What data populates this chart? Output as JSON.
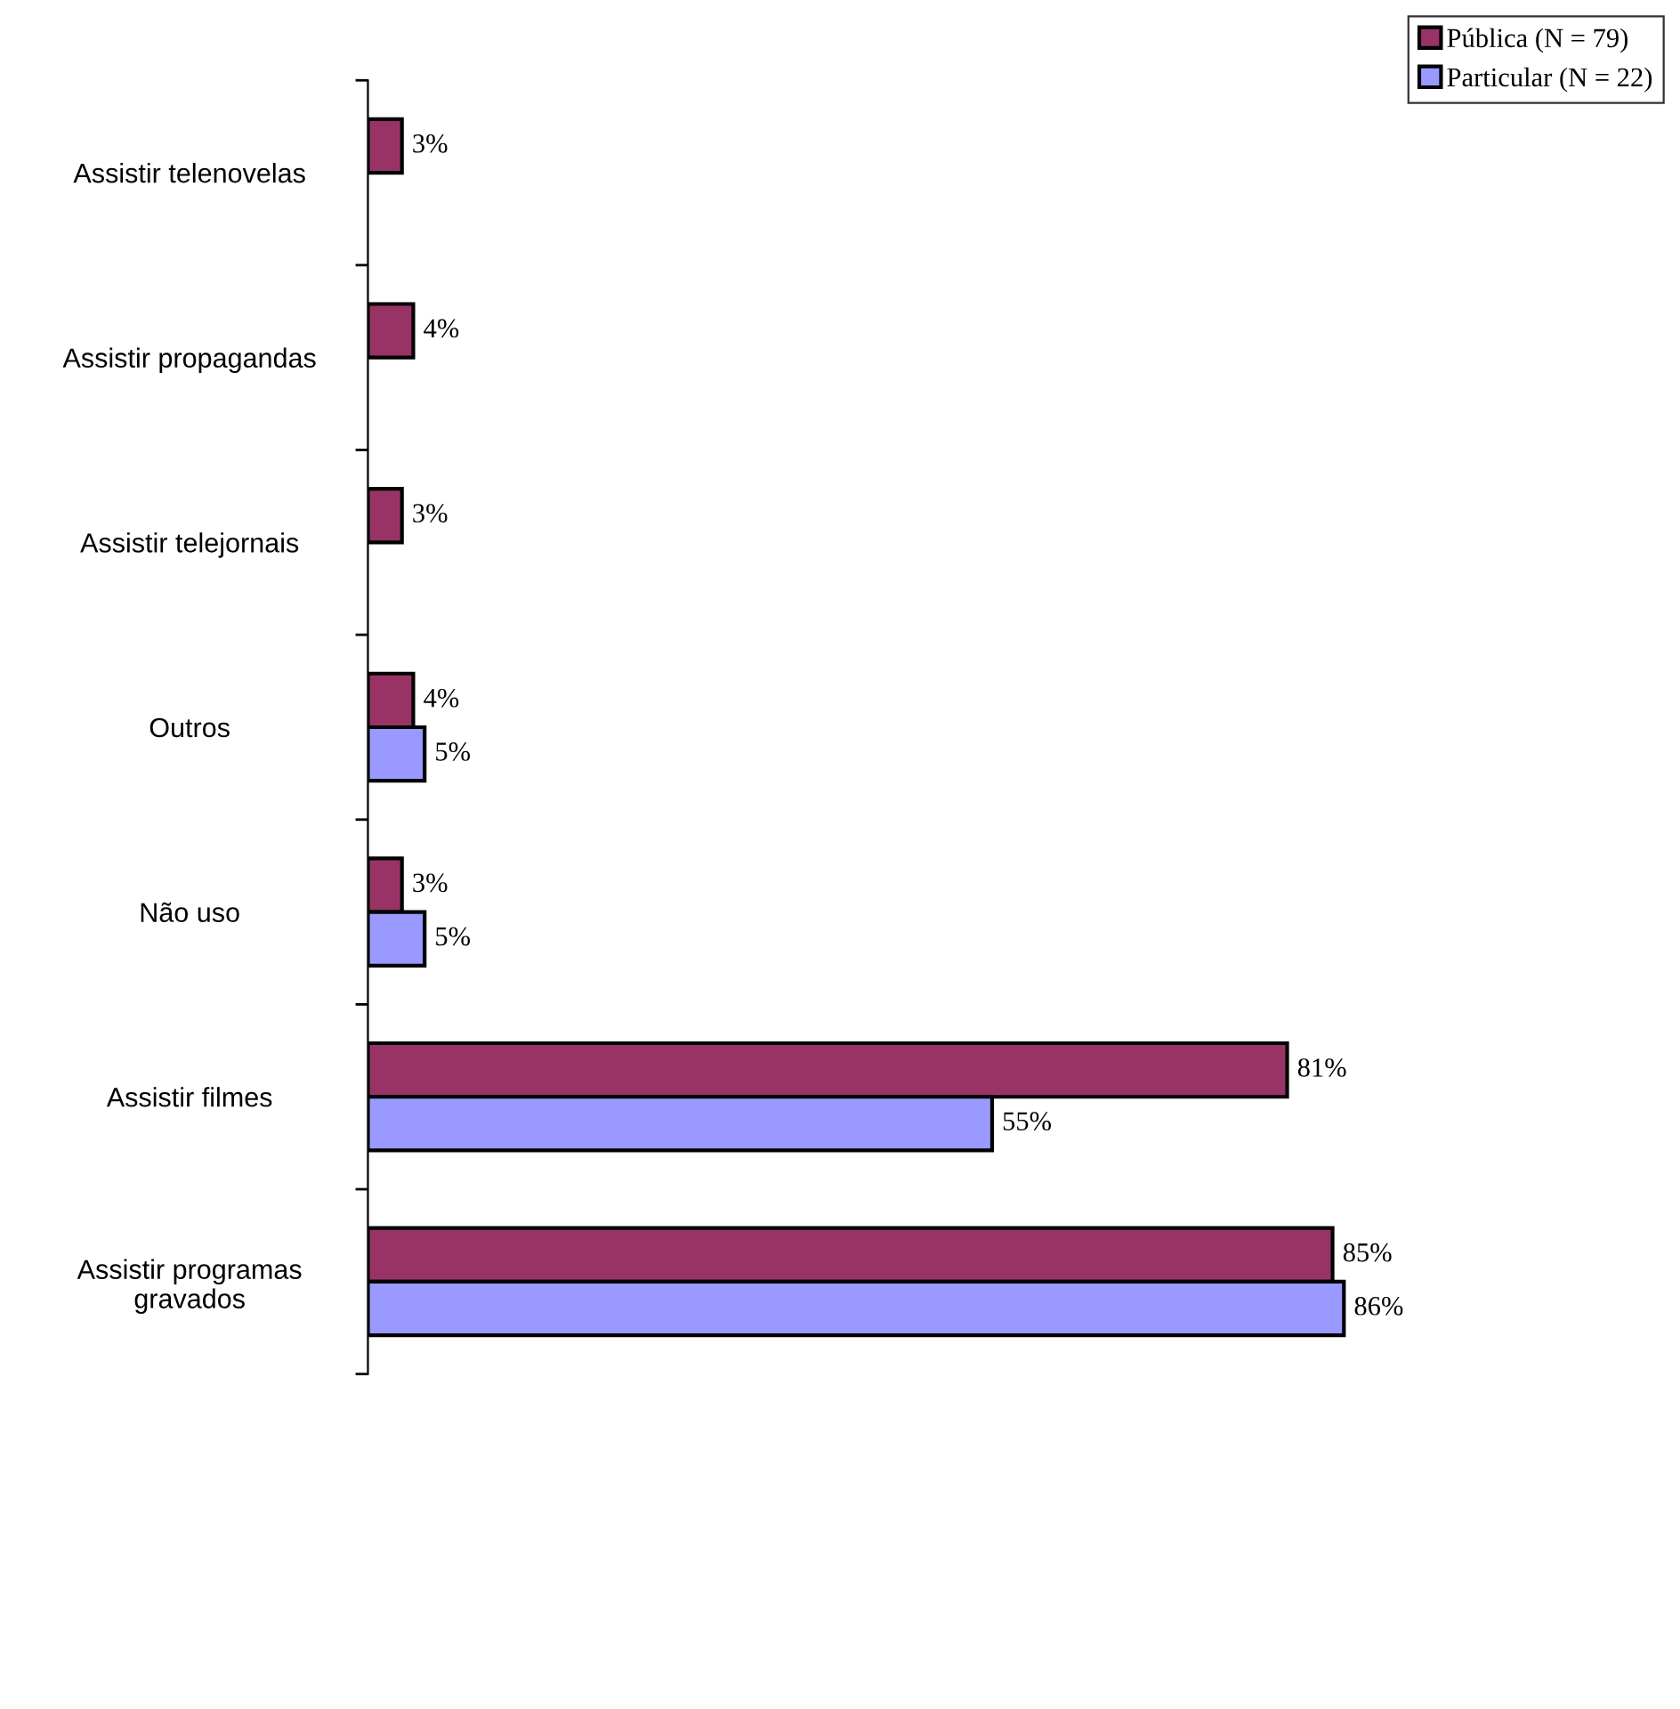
{
  "chart_data": {
    "type": "bar",
    "orientation": "horizontal",
    "categories": [
      "Assistir telenovelas",
      "Assistir propagandas",
      "Assistir telejornais",
      "Outros",
      "Não uso",
      "Assistir filmes",
      "Assistir programas\ngravados"
    ],
    "series": [
      {
        "name": "Pública (N = 79)",
        "color": "#993366",
        "values": [
          3,
          4,
          3,
          4,
          3,
          81,
          85
        ],
        "value_labels": [
          "3%",
          "4%",
          "3%",
          "4%",
          "3%",
          "81%",
          "85%"
        ]
      },
      {
        "name": "Particular (N = 22)",
        "color": "#9999ff",
        "values": [
          null,
          null,
          null,
          5,
          5,
          55,
          86
        ],
        "value_labels": [
          null,
          null,
          null,
          "5%",
          "5%",
          "55%",
          "86%"
        ]
      }
    ],
    "legend": "top right",
    "grid": false,
    "tick_labels": "y"
  }
}
